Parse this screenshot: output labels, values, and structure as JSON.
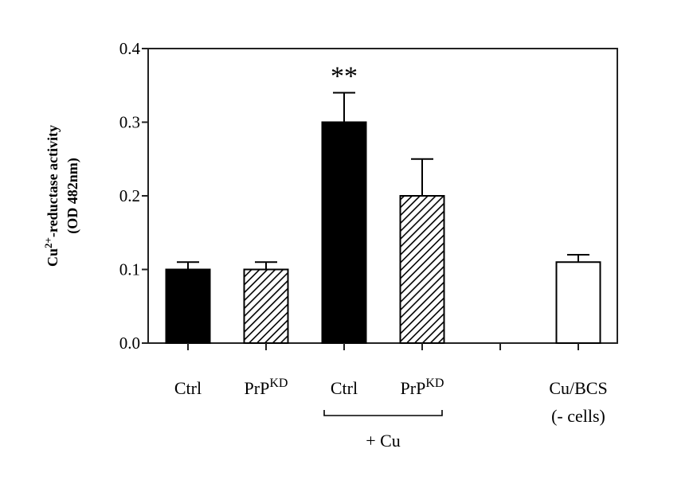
{
  "chart_data": {
    "type": "bar",
    "title": "",
    "xlabel": "",
    "ylabel": "Cu2+-reductase activity (OD 482nm)",
    "ylabel_lines": [
      "Cu2+-reductase activity",
      "(OD 482nm)"
    ],
    "ylim": [
      0.0,
      0.4
    ],
    "yticks": [
      0.0,
      0.1,
      0.2,
      0.3,
      0.4
    ],
    "ytick_labels": [
      "0.0",
      "0.1",
      "0.2",
      "0.3",
      "0.4"
    ],
    "grid": false,
    "legend": null,
    "categories": [
      "Ctrl",
      "PrPKD",
      "Ctrl + Cu",
      "PrPKD + Cu",
      "Cu/BCS (- cells)"
    ],
    "values": [
      0.1,
      0.1,
      0.3,
      0.2,
      0.11
    ],
    "errors": [
      0.01,
      0.01,
      0.04,
      0.05,
      0.01
    ],
    "bars": [
      {
        "label": "Ctrl",
        "sup": "",
        "value": 0.1,
        "error": 0.01,
        "fill": "solid-black",
        "slot": 0
      },
      {
        "label": "PrP",
        "sup": "KD",
        "value": 0.1,
        "error": 0.01,
        "fill": "hatched",
        "slot": 1
      },
      {
        "label": "Ctrl",
        "sup": "",
        "value": 0.3,
        "error": 0.04,
        "fill": "solid-black",
        "slot": 2,
        "annotation": "**"
      },
      {
        "label": "PrP",
        "sup": "KD",
        "value": 0.2,
        "error": 0.05,
        "fill": "hatched",
        "slot": 3
      },
      {
        "label": "Cu/BCS",
        "sublabel": "(- cells)",
        "sup": "",
        "value": 0.11,
        "error": 0.01,
        "fill": "white",
        "slot": 5
      }
    ],
    "group_bracket": {
      "label": "+ Cu",
      "spans_slots": [
        2,
        3
      ]
    },
    "annotations": [
      {
        "text": "**",
        "bar_index": 2
      }
    ]
  },
  "colors": {
    "axis": "#222222",
    "solid_bar": "#000000",
    "hatch": "#000000",
    "background": "#ffffff"
  }
}
